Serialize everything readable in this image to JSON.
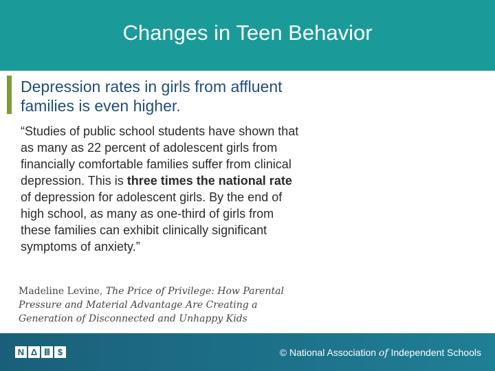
{
  "header": {
    "title": "Changes in Teen Behavior"
  },
  "subtitle": "Depression rates in girls from affluent families is even higher.",
  "quote": {
    "parts": [
      "“Studies of public school students have shown that as many as 22 percent of adolescent girls from financially comfortable families suffer from clinical depression. This is",
      "three times the national rate",
      "of depression for adolescent girls. By the end of high school, as many as one-third of girls from these families can exhibit clinically significant symptoms of anxiety.”"
    ]
  },
  "citation": {
    "author": "Madeline Levine,",
    "work": "The Price of Privilege: How Parental Pressure and Material Advantage Are Creating a Generation of Disconnected and Unhappy Kids"
  },
  "footer": {
    "logo": [
      "N",
      "Δ",
      "Ⅲ",
      "$"
    ],
    "text": [
      "© National Association",
      "of",
      "Independent Schools"
    ]
  }
}
